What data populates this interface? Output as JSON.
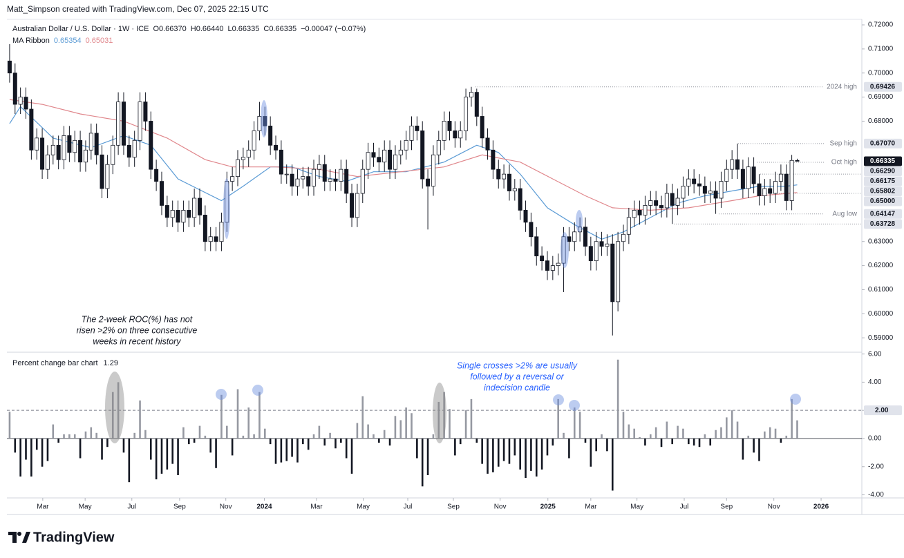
{
  "header": "Matt_Simpson created with TradingView.com, Dec 07, 2025 22:15 UTC",
  "brand": "TradingView",
  "chart_data": [
    {
      "type": "candlestick",
      "title": "Australian Dollar / U.S. Dollar · 1W · ICE",
      "ohlc_labels": [
        "O0.66370",
        "H0.66440",
        "L0.66335",
        "C0.66335",
        "−0.00047 (−0.07%)"
      ],
      "xlim": [
        -0.5,
        156.9
      ],
      "ylim": [
        0.5846,
        0.7223
      ],
      "xticks": [
        {
          "value": 6.1,
          "label": "Mar"
        },
        {
          "value": 13.9,
          "label": "May"
        },
        {
          "value": 22.5,
          "label": "Jul"
        },
        {
          "value": 31.3,
          "label": "Sep"
        },
        {
          "value": 39.8,
          "label": "Nov"
        },
        {
          "value": 46.9,
          "label": "2024"
        },
        {
          "value": 56.5,
          "label": "Mar"
        },
        {
          "value": 65.1,
          "label": "May"
        },
        {
          "value": 73.3,
          "label": "Jul"
        },
        {
          "value": 81.7,
          "label": "Sep"
        },
        {
          "value": 90.3,
          "label": "Nov"
        },
        {
          "value": 99.1,
          "label": "2025"
        },
        {
          "value": 107.0,
          "label": "Mar"
        },
        {
          "value": 115.5,
          "label": "May"
        },
        {
          "value": 124.2,
          "label": "Jul"
        },
        {
          "value": 132.0,
          "label": "Sep"
        },
        {
          "value": 140.7,
          "label": "Nov"
        },
        {
          "value": 149.4,
          "label": "2026"
        }
      ],
      "yticks": [
        {
          "value": 0.72,
          "label": "0.72000"
        },
        {
          "value": 0.71,
          "label": "0.71000"
        },
        {
          "value": 0.7,
          "label": "0.70000"
        },
        {
          "value": 0.69,
          "label": "0.69000"
        },
        {
          "value": 0.68,
          "label": "0.68000"
        },
        {
          "value": 0.63,
          "label": "0.63000"
        },
        {
          "value": 0.62,
          "label": "0.62000"
        },
        {
          "value": 0.61,
          "label": "0.61000"
        },
        {
          "value": 0.6,
          "label": "0.60000"
        },
        {
          "value": 0.59,
          "label": "0.59000"
        }
      ],
      "up_color": "#ffffff",
      "down_color": "#131722",
      "open": [
        0.705,
        0.7,
        0.687,
        0.69,
        0.685,
        0.668,
        0.673,
        0.66,
        0.666,
        0.67,
        0.664,
        0.674,
        0.667,
        0.672,
        0.663,
        0.668,
        0.675,
        0.666,
        0.652,
        0.662,
        0.67,
        0.688,
        0.67,
        0.665,
        0.672,
        0.688,
        0.68,
        0.66,
        0.655,
        0.645,
        0.64,
        0.643,
        0.638,
        0.643,
        0.64,
        0.648,
        0.641,
        0.63,
        0.632,
        0.63,
        0.638,
        0.655,
        0.657,
        0.664,
        0.665,
        0.668,
        0.676,
        0.682,
        0.678,
        0.67,
        0.668,
        0.658,
        0.658,
        0.653,
        0.656,
        0.657,
        0.653,
        0.66,
        0.662,
        0.655,
        0.656,
        0.655,
        0.66,
        0.65,
        0.64,
        0.65,
        0.66,
        0.667,
        0.665,
        0.663,
        0.668,
        0.66,
        0.666,
        0.668,
        0.672,
        0.678,
        0.676,
        0.656,
        0.653,
        0.666,
        0.672,
        0.68,
        0.676,
        0.673,
        0.676,
        0.69,
        0.692,
        0.682,
        0.673,
        0.668,
        0.66,
        0.656,
        0.658,
        0.651,
        0.652,
        0.643,
        0.638,
        0.632,
        0.624,
        0.622,
        0.618,
        0.62,
        0.621,
        0.632,
        0.63,
        0.634,
        0.636,
        0.628,
        0.622,
        0.63,
        0.628,
        0.629,
        0.605,
        0.63,
        0.633,
        0.64,
        0.643,
        0.641,
        0.645,
        0.647,
        0.645,
        0.644,
        0.65,
        0.645,
        0.648,
        0.653,
        0.656,
        0.654,
        0.653,
        0.65,
        0.651,
        0.648,
        0.655,
        0.66,
        0.664,
        0.66,
        0.652,
        0.661,
        0.654,
        0.649,
        0.652,
        0.65,
        0.655,
        0.658,
        0.647,
        0.6637
      ],
      "high": [
        0.712,
        0.704,
        0.694,
        0.694,
        0.689,
        0.677,
        0.677,
        0.67,
        0.674,
        0.674,
        0.678,
        0.678,
        0.676,
        0.676,
        0.672,
        0.679,
        0.679,
        0.67,
        0.666,
        0.674,
        0.692,
        0.692,
        0.674,
        0.676,
        0.692,
        0.692,
        0.684,
        0.664,
        0.659,
        0.649,
        0.647,
        0.647,
        0.647,
        0.647,
        0.652,
        0.652,
        0.645,
        0.636,
        0.636,
        0.642,
        0.659,
        0.661,
        0.668,
        0.669,
        0.672,
        0.68,
        0.688,
        0.686,
        0.682,
        0.674,
        0.672,
        0.662,
        0.662,
        0.66,
        0.661,
        0.661,
        0.664,
        0.666,
        0.666,
        0.66,
        0.66,
        0.664,
        0.664,
        0.654,
        0.654,
        0.664,
        0.671,
        0.671,
        0.669,
        0.672,
        0.672,
        0.67,
        0.672,
        0.676,
        0.682,
        0.682,
        0.68,
        0.66,
        0.67,
        0.676,
        0.684,
        0.684,
        0.68,
        0.68,
        0.6935,
        0.69426,
        0.6935,
        0.686,
        0.677,
        0.672,
        0.664,
        0.662,
        0.662,
        0.656,
        0.656,
        0.647,
        0.642,
        0.636,
        0.628,
        0.626,
        0.624,
        0.625,
        0.636,
        0.636,
        0.638,
        0.64,
        0.64,
        0.632,
        0.634,
        0.634,
        0.633,
        0.633,
        0.634,
        0.637,
        0.644,
        0.647,
        0.647,
        0.649,
        0.651,
        0.651,
        0.649,
        0.654,
        0.654,
        0.652,
        0.657,
        0.66,
        0.66,
        0.658,
        0.657,
        0.655,
        0.655,
        0.659,
        0.664,
        0.668,
        0.6707,
        0.664,
        0.665,
        0.665,
        0.658,
        0.656,
        0.656,
        0.659,
        0.662,
        0.662,
        0.666,
        0.6644
      ],
      "low": [
        0.696,
        0.683,
        0.683,
        0.681,
        0.664,
        0.664,
        0.656,
        0.656,
        0.662,
        0.66,
        0.66,
        0.663,
        0.663,
        0.659,
        0.659,
        0.664,
        0.662,
        0.648,
        0.648,
        0.658,
        0.666,
        0.666,
        0.661,
        0.661,
        0.668,
        0.676,
        0.656,
        0.651,
        0.641,
        0.636,
        0.636,
        0.634,
        0.634,
        0.636,
        0.636,
        0.637,
        0.626,
        0.626,
        0.626,
        0.626,
        0.634,
        0.651,
        0.653,
        0.66,
        0.661,
        0.664,
        0.672,
        0.674,
        0.666,
        0.664,
        0.654,
        0.654,
        0.649,
        0.649,
        0.652,
        0.649,
        0.649,
        0.656,
        0.651,
        0.651,
        0.651,
        0.651,
        0.646,
        0.636,
        0.636,
        0.646,
        0.656,
        0.661,
        0.659,
        0.659,
        0.656,
        0.656,
        0.662,
        0.664,
        0.668,
        0.672,
        0.652,
        0.635,
        0.649,
        0.662,
        0.668,
        0.672,
        0.669,
        0.669,
        0.672,
        0.686,
        0.678,
        0.669,
        0.664,
        0.656,
        0.652,
        0.652,
        0.647,
        0.647,
        0.639,
        0.634,
        0.628,
        0.62,
        0.618,
        0.614,
        0.614,
        0.616,
        0.609,
        0.626,
        0.626,
        0.63,
        0.624,
        0.618,
        0.618,
        0.624,
        0.624,
        0.591,
        0.601,
        0.626,
        0.629,
        0.636,
        0.637,
        0.637,
        0.641,
        0.641,
        0.64,
        0.64,
        0.6373,
        0.641,
        0.644,
        0.649,
        0.65,
        0.649,
        0.646,
        0.646,
        0.6415,
        0.644,
        0.651,
        0.656,
        0.656,
        0.648,
        0.648,
        0.65,
        0.645,
        0.645,
        0.646,
        0.646,
        0.651,
        0.643,
        0.643,
        0.66335
      ],
      "close": [
        0.7,
        0.687,
        0.69,
        0.685,
        0.668,
        0.673,
        0.66,
        0.666,
        0.67,
        0.664,
        0.674,
        0.667,
        0.672,
        0.663,
        0.668,
        0.675,
        0.666,
        0.652,
        0.662,
        0.67,
        0.688,
        0.67,
        0.665,
        0.672,
        0.688,
        0.68,
        0.66,
        0.655,
        0.645,
        0.64,
        0.643,
        0.638,
        0.643,
        0.64,
        0.648,
        0.641,
        0.63,
        0.632,
        0.63,
        0.638,
        0.655,
        0.657,
        0.664,
        0.665,
        0.668,
        0.676,
        0.682,
        0.678,
        0.67,
        0.668,
        0.658,
        0.658,
        0.653,
        0.656,
        0.657,
        0.653,
        0.66,
        0.662,
        0.655,
        0.656,
        0.655,
        0.66,
        0.65,
        0.64,
        0.65,
        0.66,
        0.667,
        0.665,
        0.663,
        0.668,
        0.66,
        0.666,
        0.668,
        0.672,
        0.678,
        0.676,
        0.656,
        0.653,
        0.666,
        0.672,
        0.68,
        0.676,
        0.673,
        0.676,
        0.69,
        0.692,
        0.682,
        0.673,
        0.668,
        0.66,
        0.656,
        0.658,
        0.651,
        0.652,
        0.643,
        0.638,
        0.632,
        0.624,
        0.622,
        0.618,
        0.62,
        0.621,
        0.632,
        0.63,
        0.634,
        0.636,
        0.628,
        0.622,
        0.63,
        0.628,
        0.629,
        0.605,
        0.63,
        0.633,
        0.64,
        0.643,
        0.641,
        0.645,
        0.647,
        0.645,
        0.644,
        0.65,
        0.645,
        0.648,
        0.653,
        0.656,
        0.654,
        0.653,
        0.65,
        0.651,
        0.648,
        0.655,
        0.66,
        0.664,
        0.66,
        0.652,
        0.661,
        0.654,
        0.649,
        0.652,
        0.65,
        0.655,
        0.658,
        0.647,
        0.6637,
        0.66335
      ],
      "ma_title": "MA Ribbon",
      "ma_series": [
        {
          "color": "#5b9bd5",
          "label": "0.65354",
          "x": [
            0,
            2,
            8,
            15,
            21,
            26,
            31,
            39,
            43,
            48,
            52,
            57,
            62,
            67,
            73,
            80,
            86,
            90,
            94,
            99,
            104,
            109,
            113,
            118,
            123,
            128,
            133,
            138,
            143,
            145
          ],
          "values": [
            0.679,
            0.686,
            0.673,
            0.669,
            0.674,
            0.67,
            0.656,
            0.647,
            0.653,
            0.661,
            0.661,
            0.657,
            0.655,
            0.659,
            0.659,
            0.663,
            0.67,
            0.667,
            0.658,
            0.644,
            0.637,
            0.631,
            0.634,
            0.64,
            0.646,
            0.649,
            0.651,
            0.653,
            0.653,
            0.65354
          ]
        },
        {
          "color": "#e0868b",
          "label": "0.65031",
          "x": [
            0,
            6,
            13,
            21,
            29,
            36,
            41,
            49,
            57,
            64,
            72,
            80,
            87,
            94,
            100,
            106,
            111,
            118,
            125,
            133,
            138,
            145
          ],
          "values": [
            0.689,
            0.687,
            0.683,
            0.68,
            0.673,
            0.664,
            0.661,
            0.661,
            0.66,
            0.657,
            0.659,
            0.661,
            0.666,
            0.663,
            0.656,
            0.649,
            0.644,
            0.643,
            0.644,
            0.647,
            0.649,
            0.65031
          ]
        }
      ],
      "levels": [
        {
          "value": 0.69426,
          "label": "0.69426",
          "note": "2024 high"
        },
        {
          "value": 0.6707,
          "label": "0.67070",
          "note": "Sep high"
        },
        {
          "value": 0.66335,
          "label": "0.66335",
          "current": true
        },
        {
          "value": 0.6629,
          "label": "0.66290",
          "note": "Oct high"
        },
        {
          "value": 0.66175,
          "label": "0.66175"
        },
        {
          "value": 0.65802,
          "label": "0.65802"
        },
        {
          "value": 0.65,
          "label": "0.65000"
        },
        {
          "value": 0.64147,
          "label": "0.64147",
          "note": "Aug low"
        },
        {
          "value": 0.63728,
          "label": "0.63728"
        }
      ],
      "note": [
        "The 2-week ROC(%) has not",
        "risen >2% on three consecutive",
        "weeks in recent history"
      ]
    },
    {
      "type": "bar",
      "title": "Percent change bar chart",
      "xlim": [
        -0.5,
        156.9
      ],
      "ylim": [
        -4.17,
        6.03
      ],
      "yticks": [
        {
          "value": 6,
          "label": "6.00"
        },
        {
          "value": 4,
          "label": "4.00"
        },
        {
          "value": 2,
          "label": "2.00"
        },
        {
          "value": 0,
          "label": "0.00"
        },
        {
          "value": -2,
          "label": "-2.00"
        },
        {
          "value": -4,
          "label": "-4.00"
        }
      ],
      "reference_line": 2,
      "up_color": "#9598a1",
      "down_color": "#131722",
      "values": [
        1.9,
        -1.0,
        -2.7,
        -1.5,
        -2.7,
        -0.8,
        -2.0,
        -1.6,
        1.0,
        -0.3,
        0.3,
        0.3,
        0.3,
        -1.4,
        0.5,
        0.8,
        0.4,
        -1.5,
        -0.6,
        3.3,
        4.0,
        -1.0,
        -3.1,
        0.4,
        2.7,
        0.6,
        -1.5,
        -2.9,
        -2.5,
        -2.2,
        -1.8,
        -2.6,
        0.8,
        -0.4,
        -0.3,
        0.9,
        0.2,
        -1.0,
        -2.1,
        3.1,
        0.9,
        -1.2,
        3.5,
        0.2,
        2.2,
        0.3,
        3.3,
        0.7,
        -0.4,
        -1.8,
        -1.7,
        -1.6,
        -1.3,
        -1.7,
        -0.4,
        -0.8,
        0.3,
        0.9,
        -0.5,
        0.4,
        -0.7,
        -0.3,
        -1.4,
        -2.5,
        1.1,
        3.0,
        1.0,
        0.3,
        -0.3,
        0.6,
        -0.5,
        1.6,
        1.3,
        2.2,
        1.8,
        -1.4,
        -3.4,
        -2.6,
        0.3,
        2.6,
        3.3,
        2.1,
        -1.2,
        -0.4,
        2.0,
        2.8,
        -0.3,
        -1.8,
        -2.5,
        -2.4,
        -2.0,
        -1.6,
        -1.8,
        -1.2,
        -2.2,
        -2.8,
        -2.3,
        -2.7,
        -2.2,
        -1.2,
        -0.5,
        2.8,
        0.4,
        -1.4,
        2.2,
        1.9,
        -0.3,
        -2.0,
        -0.9,
        0.3,
        -0.9,
        -3.7,
        5.6,
        1.9,
        1.0,
        0.7,
        0.1,
        -0.5,
        0.3,
        0.8,
        -0.6,
        1.2,
        -0.4,
        0.9,
        0.7,
        -0.4,
        -0.5,
        -0.6,
        0.3,
        -0.5,
        0.6,
        0.8,
        1.5,
        2.0,
        1.2,
        -1.5,
        0.2,
        -1.0,
        -1.6,
        0.5,
        0.8,
        0.7,
        -0.3,
        0.2,
        2.8,
        1.29
      ],
      "note": [
        "Single crosses >2% are usually",
        "followed by a reversal or",
        "indecision candle"
      ]
    }
  ]
}
